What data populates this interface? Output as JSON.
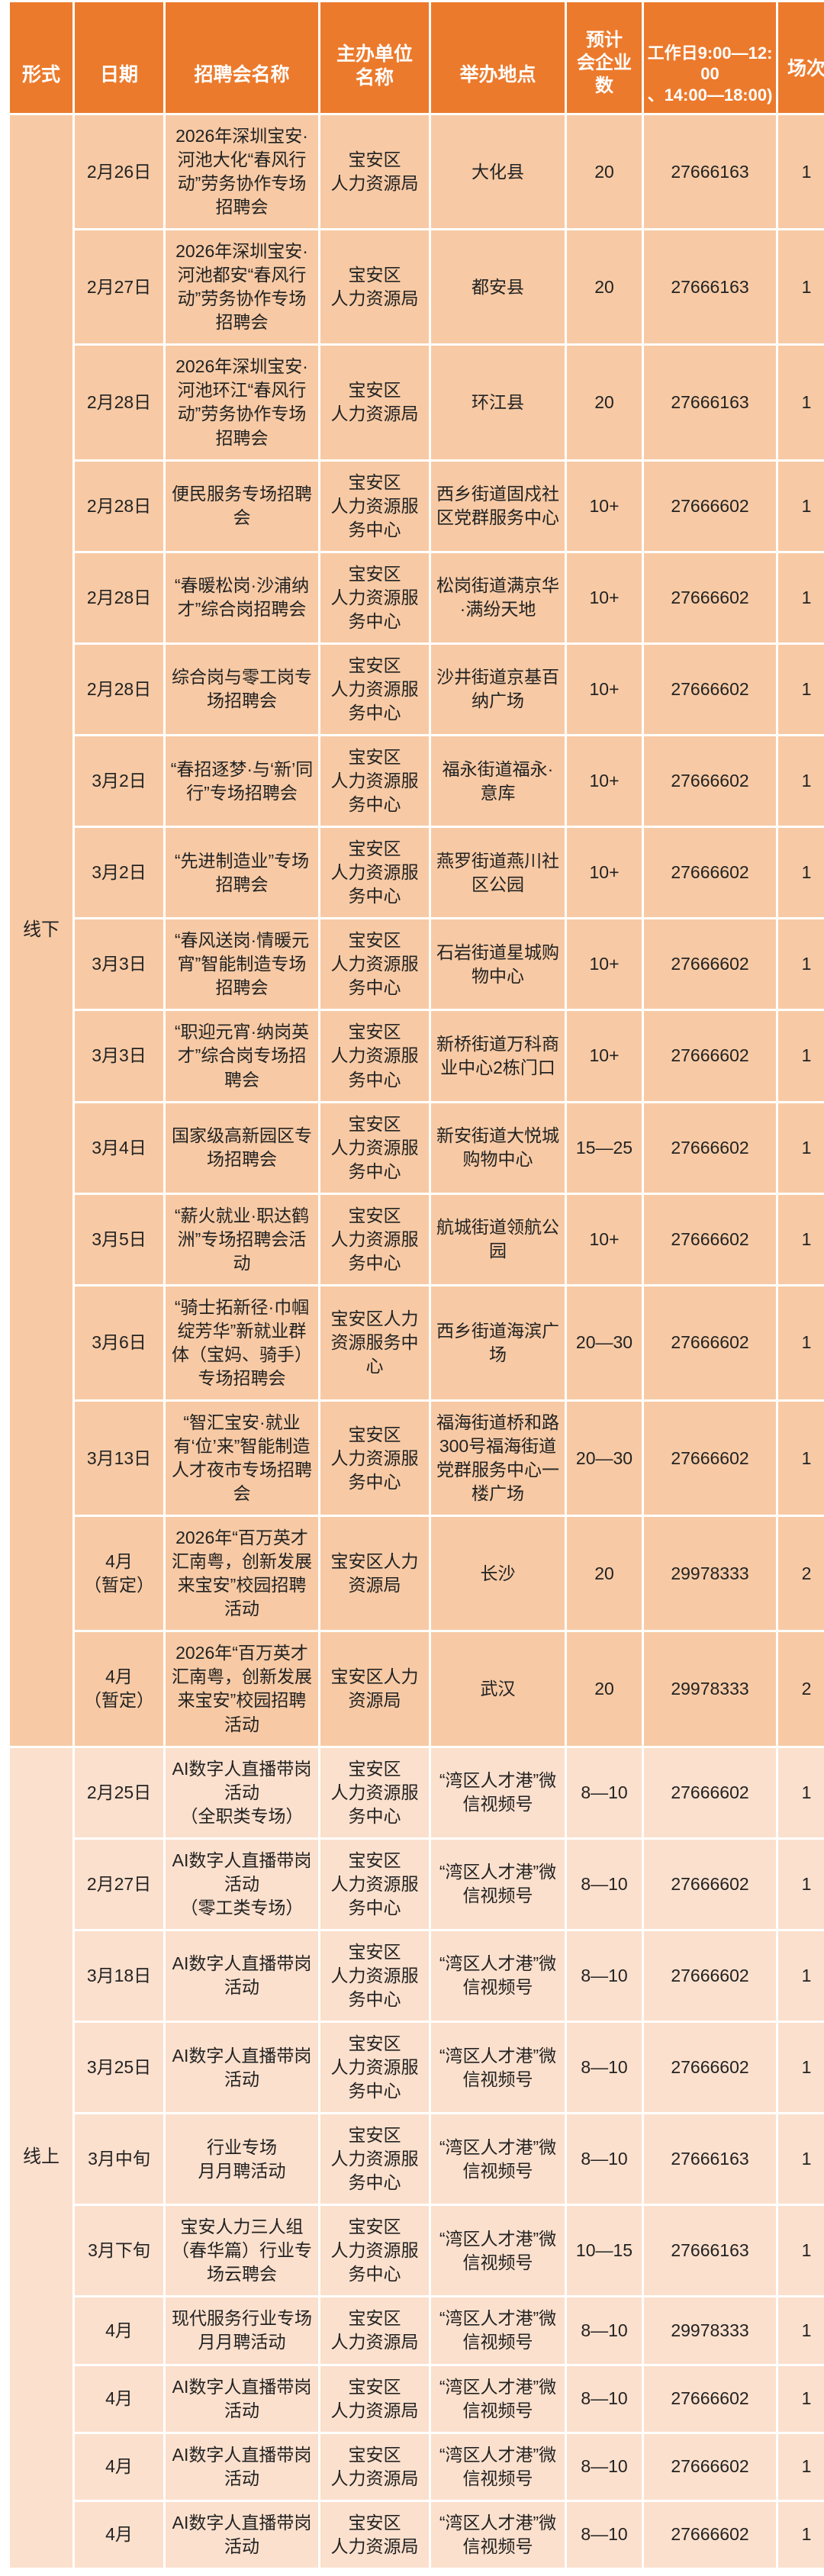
{
  "colors": {
    "header_bg": "#ec7a2c",
    "offline_row_bg": "#f7caa5",
    "online_row_bg": "#fbe0cd",
    "header_text": "#ffffff",
    "body_text": "#222222",
    "gridline": "#ffffff"
  },
  "table": {
    "columns": [
      {
        "key": "format",
        "label": "形式"
      },
      {
        "key": "date",
        "label": "日期"
      },
      {
        "key": "name",
        "label": "招聘会名称"
      },
      {
        "key": "organizer",
        "label": "主办单位\n名称"
      },
      {
        "key": "venue",
        "label": "举办地点"
      },
      {
        "key": "companies",
        "label": "预计\n会企业\n数"
      },
      {
        "key": "phone",
        "label": "工作日9:00—12:00\n、14:00—18:00)"
      },
      {
        "key": "sessions",
        "label": "场次"
      }
    ],
    "sections": [
      {
        "key": "offline",
        "label": "线下",
        "rows": [
          {
            "date": "2月26日",
            "name": "2026年深圳宝安·河池大化“春风行动”劳务协作专场招聘会",
            "organizer": "宝安区\n人力资源局",
            "venue": "大化县",
            "companies": "20",
            "phone": "27666163",
            "sessions": "1"
          },
          {
            "date": "2月27日",
            "name": "2026年深圳宝安·河池都安“春风行动”劳务协作专场招聘会",
            "organizer": "宝安区\n人力资源局",
            "venue": "都安县",
            "companies": "20",
            "phone": "27666163",
            "sessions": "1"
          },
          {
            "date": "2月28日",
            "name": "2026年深圳宝安·河池环江“春风行动”劳务协作专场招聘会",
            "organizer": "宝安区\n人力资源局",
            "venue": "环江县",
            "companies": "20",
            "phone": "27666163",
            "sessions": "1"
          },
          {
            "date": "2月28日",
            "name": "便民服务专场招聘会",
            "organizer": "宝安区\n人力资源服务中心",
            "venue": "西乡街道固戍社区党群服务中心",
            "companies": "10+",
            "phone": "27666602",
            "sessions": "1"
          },
          {
            "date": "2月28日",
            "name": "“春暖松岗·沙浦纳才”综合岗招聘会",
            "organizer": "宝安区\n人力资源服务中心",
            "venue": "松岗街道满京华·满纷天地",
            "companies": "10+",
            "phone": "27666602",
            "sessions": "1"
          },
          {
            "date": "2月28日",
            "name": "综合岗与零工岗专场招聘会",
            "organizer": "宝安区\n人力资源服务中心",
            "venue": "沙井街道京基百纳广场",
            "companies": "10+",
            "phone": "27666602",
            "sessions": "1"
          },
          {
            "date": "3月2日",
            "name": "“春招逐梦·与‘新’同行”专场招聘会",
            "organizer": "宝安区\n人力资源服务中心",
            "venue": "福永街道福永·意库",
            "companies": "10+",
            "phone": "27666602",
            "sessions": "1"
          },
          {
            "date": "3月2日",
            "name": "“先进制造业”专场招聘会",
            "organizer": "宝安区\n人力资源服务中心",
            "venue": "燕罗街道燕川社区公园",
            "companies": "10+",
            "phone": "27666602",
            "sessions": "1"
          },
          {
            "date": "3月3日",
            "name": "“春风送岗·情暖元宵”智能制造专场招聘会",
            "organizer": "宝安区\n人力资源服务中心",
            "venue": "石岩街道星城购物中心",
            "companies": "10+",
            "phone": "27666602",
            "sessions": "1"
          },
          {
            "date": "3月3日",
            "name": "“职迎元宵·纳岗英才”综合岗专场招聘会",
            "organizer": "宝安区\n人力资源服务中心",
            "venue": "新桥街道万科商业中心2栋门口",
            "companies": "10+",
            "phone": "27666602",
            "sessions": "1"
          },
          {
            "date": "3月4日",
            "name": "国家级高新园区专场招聘会",
            "organizer": "宝安区\n人力资源服务中心",
            "venue": "新安街道大悦城购物中心",
            "companies": "15—25",
            "phone": "27666602",
            "sessions": "1"
          },
          {
            "date": "3月5日",
            "name": "“薪火就业·职达鹤洲”专场招聘会活动",
            "organizer": "宝安区\n人力资源服务中心",
            "venue": "航城街道领航公园",
            "companies": "10+",
            "phone": "27666602",
            "sessions": "1"
          },
          {
            "date": "3月6日",
            "name": "“骑士拓新径·巾帼绽芳华”新就业群体（宝妈、骑手）专场招聘会",
            "organizer": "宝安区人力资源服务中心",
            "venue": "西乡街道海滨广场",
            "companies": "20—30",
            "phone": "27666602",
            "sessions": "1"
          },
          {
            "date": "3月13日",
            "name": "“智汇宝安·就业有‘位’来”智能制造人才夜市专场招聘会",
            "organizer": "宝安区\n人力资源服务中心",
            "venue": "福海街道桥和路300号福海街道党群服务中心一楼广场",
            "companies": "20—30",
            "phone": "27666602",
            "sessions": "1"
          },
          {
            "date": "4月\n（暂定）",
            "name": "2026年“百万英才汇南粤，创新发展来宝安”校园招聘活动",
            "organizer": "宝安区人力\n资源局",
            "venue": "长沙",
            "companies": "20",
            "phone": "29978333",
            "sessions": "2"
          },
          {
            "date": "4月\n（暂定）",
            "name": "2026年“百万英才汇南粤，创新发展来宝安”校园招聘活动",
            "organizer": "宝安区人力\n资源局",
            "venue": "武汉",
            "companies": "20",
            "phone": "29978333",
            "sessions": "2"
          }
        ]
      },
      {
        "key": "online",
        "label": "线上",
        "rows": [
          {
            "date": "2月25日",
            "name": "AI数字人直播带岗活动\n（全职类专场）",
            "organizer": "宝安区\n人力资源服务中心",
            "venue": "“湾区人才港”微信视频号",
            "companies": "8—10",
            "phone": "27666602",
            "sessions": "1"
          },
          {
            "date": "2月27日",
            "name": "AI数字人直播带岗活动\n（零工类专场）",
            "organizer": "宝安区\n人力资源服务中心",
            "venue": "“湾区人才港”微信视频号",
            "companies": "8—10",
            "phone": "27666602",
            "sessions": "1"
          },
          {
            "date": "3月18日",
            "name": "AI数字人直播带岗活动",
            "organizer": "宝安区\n人力资源服务中心",
            "venue": "“湾区人才港”微信视频号",
            "companies": "8—10",
            "phone": "27666602",
            "sessions": "1"
          },
          {
            "date": "3月25日",
            "name": "AI数字人直播带岗活动",
            "organizer": "宝安区\n人力资源服务中心",
            "venue": "“湾区人才港”微信视频号",
            "companies": "8—10",
            "phone": "27666602",
            "sessions": "1"
          },
          {
            "date": "3月中旬",
            "name": "行业专场\n月月聘活动",
            "organizer": "宝安区\n人力资源服务中心",
            "venue": "“湾区人才港”微信视频号",
            "companies": "8—10",
            "phone": "27666163",
            "sessions": "1"
          },
          {
            "date": "3月下旬",
            "name": "宝安人力三人组（春华篇）行业专场云聘会",
            "organizer": "宝安区\n人力资源服务中心",
            "venue": "“湾区人才港”微信视频号",
            "companies": "10—15",
            "phone": "27666163",
            "sessions": "1"
          },
          {
            "date": "4月",
            "name": "现代服务行业专场月月聘活动",
            "organizer": "宝安区\n人力资源局",
            "venue": "“湾区人才港”微信视频号",
            "companies": "8—10",
            "phone": "29978333",
            "sessions": "1"
          },
          {
            "date": "4月",
            "name": "AI数字人直播带岗活动",
            "organizer": "宝安区\n人力资源局",
            "venue": "“湾区人才港”微信视频号",
            "companies": "8—10",
            "phone": "27666602",
            "sessions": "1"
          },
          {
            "date": "4月",
            "name": "AI数字人直播带岗活动",
            "organizer": "宝安区\n人力资源局",
            "venue": "“湾区人才港”微信视频号",
            "companies": "8—10",
            "phone": "27666602",
            "sessions": "1"
          },
          {
            "date": "4月",
            "name": "AI数字人直播带岗活动",
            "organizer": "宝安区\n人力资源局",
            "venue": "“湾区人才港”微信视频号",
            "companies": "8—10",
            "phone": "27666602",
            "sessions": "1"
          }
        ]
      }
    ]
  }
}
